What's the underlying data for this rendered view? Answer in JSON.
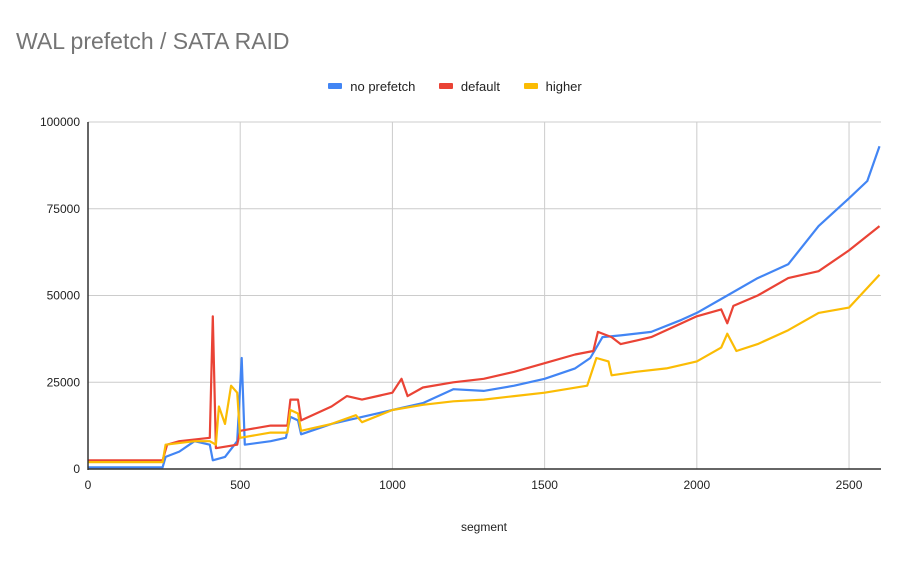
{
  "chart_data": {
    "type": "line",
    "title": "WAL prefetch / SATA RAID",
    "xlabel": "segment",
    "ylabel": "",
    "xlim": [
      0,
      2605
    ],
    "ylim": [
      0,
      100000
    ],
    "xticks": [
      "0",
      "500",
      "1000",
      "1500",
      "2000",
      "2500"
    ],
    "yticks": [
      "0",
      "25000",
      "50000",
      "75000",
      "100000"
    ],
    "grid": true,
    "legend_position": "top",
    "series": [
      {
        "name": "no prefetch",
        "color": "#4285f4",
        "points": [
          [
            0,
            500
          ],
          [
            245,
            500
          ],
          [
            255,
            3500
          ],
          [
            300,
            5000
          ],
          [
            350,
            8000
          ],
          [
            400,
            7000
          ],
          [
            410,
            2500
          ],
          [
            450,
            3500
          ],
          [
            490,
            8000
          ],
          [
            505,
            32000
          ],
          [
            515,
            7000
          ],
          [
            600,
            8000
          ],
          [
            650,
            9000
          ],
          [
            665,
            15000
          ],
          [
            690,
            14000
          ],
          [
            700,
            10000
          ],
          [
            800,
            13000
          ],
          [
            900,
            15000
          ],
          [
            1000,
            17000
          ],
          [
            1100,
            19000
          ],
          [
            1200,
            23000
          ],
          [
            1300,
            22500
          ],
          [
            1400,
            24000
          ],
          [
            1500,
            26000
          ],
          [
            1600,
            29000
          ],
          [
            1650,
            32000
          ],
          [
            1690,
            38000
          ],
          [
            1750,
            38500
          ],
          [
            1850,
            39500
          ],
          [
            1950,
            43000
          ],
          [
            2000,
            45000
          ],
          [
            2100,
            50000
          ],
          [
            2200,
            55000
          ],
          [
            2300,
            59000
          ],
          [
            2400,
            70000
          ],
          [
            2500,
            78000
          ],
          [
            2560,
            83000
          ],
          [
            2600,
            93000
          ]
        ]
      },
      {
        "name": "default",
        "color": "#ea4335",
        "points": [
          [
            0,
            2500
          ],
          [
            245,
            2500
          ],
          [
            260,
            7000
          ],
          [
            300,
            8000
          ],
          [
            400,
            9000
          ],
          [
            410,
            44000
          ],
          [
            420,
            6000
          ],
          [
            490,
            7000
          ],
          [
            500,
            11000
          ],
          [
            600,
            12500
          ],
          [
            655,
            12500
          ],
          [
            665,
            20000
          ],
          [
            690,
            20000
          ],
          [
            700,
            14000
          ],
          [
            800,
            18000
          ],
          [
            850,
            21000
          ],
          [
            900,
            20000
          ],
          [
            1000,
            22000
          ],
          [
            1030,
            26000
          ],
          [
            1050,
            21000
          ],
          [
            1100,
            23500
          ],
          [
            1200,
            25000
          ],
          [
            1300,
            26000
          ],
          [
            1400,
            28000
          ],
          [
            1500,
            30500
          ],
          [
            1600,
            33000
          ],
          [
            1660,
            34000
          ],
          [
            1675,
            39500
          ],
          [
            1720,
            38000
          ],
          [
            1750,
            36000
          ],
          [
            1850,
            38000
          ],
          [
            1950,
            42000
          ],
          [
            2000,
            44000
          ],
          [
            2080,
            46000
          ],
          [
            2100,
            42000
          ],
          [
            2120,
            47000
          ],
          [
            2200,
            50000
          ],
          [
            2300,
            55000
          ],
          [
            2400,
            57000
          ],
          [
            2500,
            63000
          ],
          [
            2600,
            70000
          ]
        ]
      },
      {
        "name": "higher",
        "color": "#fbbc04",
        "points": [
          [
            0,
            2000
          ],
          [
            245,
            2000
          ],
          [
            255,
            7000
          ],
          [
            350,
            8000
          ],
          [
            400,
            8000
          ],
          [
            420,
            7000
          ],
          [
            430,
            18000
          ],
          [
            450,
            13000
          ],
          [
            470,
            24000
          ],
          [
            490,
            22000
          ],
          [
            500,
            9000
          ],
          [
            600,
            10500
          ],
          [
            655,
            10500
          ],
          [
            665,
            17000
          ],
          [
            690,
            16000
          ],
          [
            700,
            11000
          ],
          [
            800,
            13000
          ],
          [
            880,
            15500
          ],
          [
            900,
            13500
          ],
          [
            1000,
            17000
          ],
          [
            1100,
            18500
          ],
          [
            1200,
            19500
          ],
          [
            1300,
            20000
          ],
          [
            1400,
            21000
          ],
          [
            1500,
            22000
          ],
          [
            1640,
            24000
          ],
          [
            1670,
            32000
          ],
          [
            1710,
            31000
          ],
          [
            1720,
            27000
          ],
          [
            1800,
            28000
          ],
          [
            1900,
            29000
          ],
          [
            2000,
            31000
          ],
          [
            2080,
            35000
          ],
          [
            2100,
            39000
          ],
          [
            2130,
            34000
          ],
          [
            2200,
            36000
          ],
          [
            2300,
            40000
          ],
          [
            2400,
            45000
          ],
          [
            2500,
            46500
          ],
          [
            2600,
            56000
          ]
        ]
      }
    ]
  }
}
